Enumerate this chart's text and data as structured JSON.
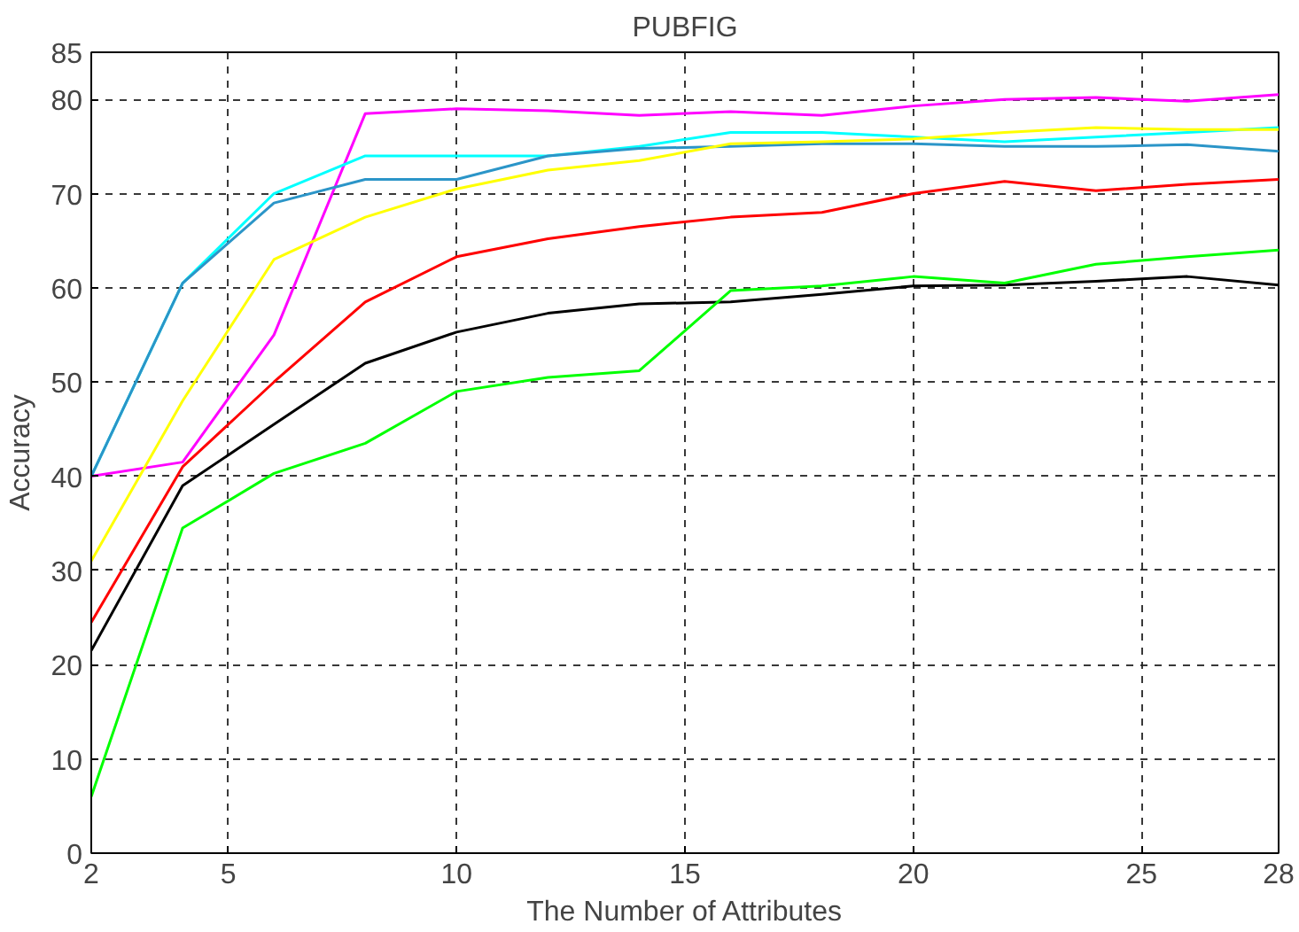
{
  "chart_data": {
    "type": "line",
    "title": "PUBFIG",
    "xlabel": "The Number of Attributes",
    "ylabel": "Accuracy",
    "x": [
      2,
      4,
      6,
      8,
      10,
      12,
      14,
      16,
      18,
      20,
      22,
      24,
      26,
      28
    ],
    "series": [
      {
        "color": "#ff00ff",
        "values": [
          40,
          41.5,
          55,
          78.5,
          79,
          78.8,
          78.3,
          78.7,
          78.3,
          79.3,
          80,
          80.2,
          79.8,
          80.5
        ]
      },
      {
        "color": "#00ffff",
        "values": [
          40,
          60.5,
          70,
          74,
          74,
          74,
          75,
          76.5,
          76.5,
          76,
          75.5,
          76,
          76.5,
          77
        ]
      },
      {
        "color": "#2b95c8",
        "values": [
          40,
          60.5,
          69,
          71.5,
          71.5,
          74,
          74.8,
          75,
          75.3,
          75.3,
          75,
          75,
          75.2,
          74.5
        ]
      },
      {
        "color": "#ffff00",
        "values": [
          31,
          48,
          63,
          67.5,
          70.5,
          72.5,
          73.5,
          75.3,
          75.5,
          75.8,
          76.5,
          77,
          76.8,
          76.8
        ]
      },
      {
        "color": "#ff0000",
        "values": [
          24.5,
          41,
          50,
          58.5,
          63.3,
          65.2,
          66.5,
          67.5,
          68,
          70,
          71.3,
          70.3,
          71,
          71.5
        ]
      },
      {
        "color": "#000000",
        "values": [
          21.5,
          39,
          45.5,
          52,
          55.3,
          57.3,
          58.3,
          58.5,
          59.3,
          60.2,
          60.3,
          60.7,
          61.2,
          60.3
        ]
      },
      {
        "color": "#00ff00",
        "values": [
          6,
          34.5,
          40.3,
          43.5,
          49,
          50.5,
          51.2,
          59.7,
          60.2,
          61.2,
          60.5,
          62.5,
          63.3,
          64
        ]
      }
    ],
    "xlim": [
      2,
      28
    ],
    "xticks": [
      2,
      5,
      10,
      15,
      20,
      25,
      28
    ],
    "ylim": [
      0,
      85
    ],
    "yticks": [
      0,
      10,
      20,
      30,
      40,
      50,
      60,
      70,
      80,
      85
    ],
    "grid": true,
    "marker": "none",
    "line_style": "solid"
  }
}
